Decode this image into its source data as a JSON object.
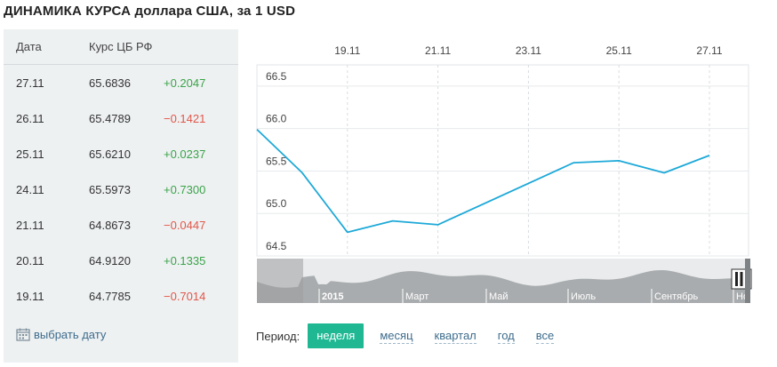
{
  "title": "ДИНАМИКА КУРСА доллара США, за 1 USD",
  "table": {
    "col_date": "Дата",
    "col_rate": "Курс ЦБ РФ",
    "rows": [
      {
        "date": "27.11",
        "rate": "65.6836",
        "diff": "+0.2047",
        "trend": "up"
      },
      {
        "date": "26.11",
        "rate": "65.4789",
        "diff": "−0.1421",
        "trend": "down"
      },
      {
        "date": "25.11",
        "rate": "65.6210",
        "diff": "+0.0237",
        "trend": "up"
      },
      {
        "date": "24.11",
        "rate": "65.5973",
        "diff": "+0.7300",
        "trend": "up"
      },
      {
        "date": "21.11",
        "rate": "64.8673",
        "diff": "−0.0447",
        "trend": "down"
      },
      {
        "date": "20.11",
        "rate": "64.9120",
        "diff": "+0.1335",
        "trend": "up"
      },
      {
        "date": "19.11",
        "rate": "64.7785",
        "diff": "−0.7014",
        "trend": "down"
      }
    ]
  },
  "pick_date": {
    "label": "выбрать дату",
    "icon": "calendar-icon"
  },
  "period": {
    "label": "Период:",
    "options": [
      "неделя",
      "месяц",
      "квартал",
      "год",
      "все"
    ],
    "active": "неделя"
  },
  "colors": {
    "line": "#1ea9d8",
    "positive": "#3aa34a",
    "negative": "#e0574a",
    "active_button": "#1fb893",
    "link": "#3d6c8c"
  },
  "chart_data": {
    "type": "line",
    "x_tick_labels": [
      "19.11",
      "21.11",
      "23.11",
      "25.11",
      "27.11"
    ],
    "y_tick_labels": [
      "66.5",
      "66.0",
      "65.5",
      "65.0",
      "64.5"
    ],
    "ylim": [
      64.5,
      66.75
    ],
    "grid": true,
    "series": [
      {
        "x": [
          "17.11",
          "18.11",
          "19.11",
          "20.11",
          "21.11",
          "24.11",
          "25.11",
          "26.11",
          "27.11"
        ],
        "values": [
          65.99,
          65.48,
          64.7785,
          64.912,
          64.8673,
          65.5973,
          65.621,
          65.4789,
          65.6836
        ]
      }
    ],
    "navigator": {
      "labels": [
        "2015",
        "Март",
        "Май",
        "Июль",
        "Сентябрь",
        "Ноябрь"
      ]
    }
  }
}
